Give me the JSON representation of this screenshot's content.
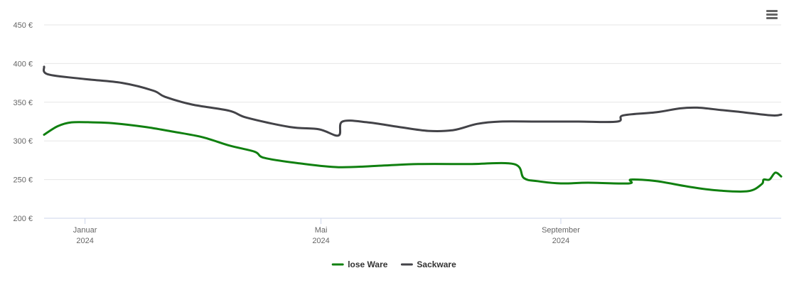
{
  "chart_data": {
    "type": "line",
    "title": "",
    "xlabel": "",
    "ylabel": "",
    "x_domain": [
      "2023-12-11",
      "2024-12-23"
    ],
    "ylim": [
      200,
      450
    ],
    "y_ticks": [
      200,
      250,
      300,
      350,
      400,
      450
    ],
    "y_tick_labels": [
      "200 €",
      "250 €",
      "300 €",
      "350 €",
      "400 €",
      "450 €"
    ],
    "x_ticks": [
      {
        "date": "2024-01-01",
        "month": "Januar",
        "year": "2024"
      },
      {
        "date": "2024-05-01",
        "month": "Mai",
        "year": "2024"
      },
      {
        "date": "2024-09-01",
        "month": "September",
        "year": "2024"
      }
    ],
    "grid": true,
    "legend_position": "bottom-center",
    "series": [
      {
        "name": "lose Ware",
        "color": "#108010",
        "points": [
          [
            "2023-12-11",
            308
          ],
          [
            "2023-12-18",
            319
          ],
          [
            "2023-12-25",
            324
          ],
          [
            "2024-01-05",
            324
          ],
          [
            "2024-01-15",
            323
          ],
          [
            "2024-02-01",
            318
          ],
          [
            "2024-02-15",
            312
          ],
          [
            "2024-03-01",
            305
          ],
          [
            "2024-03-15",
            294
          ],
          [
            "2024-03-28",
            286
          ],
          [
            "2024-04-02",
            278
          ],
          [
            "2024-04-20",
            271
          ],
          [
            "2024-05-10",
            266
          ],
          [
            "2024-06-01",
            268
          ],
          [
            "2024-06-20",
            270
          ],
          [
            "2024-07-15",
            270
          ],
          [
            "2024-08-08",
            270
          ],
          [
            "2024-08-13",
            252
          ],
          [
            "2024-08-20",
            248
          ],
          [
            "2024-09-01",
            245
          ],
          [
            "2024-09-15",
            246
          ],
          [
            "2024-10-06",
            245
          ],
          [
            "2024-10-07",
            250
          ],
          [
            "2024-10-20",
            248
          ],
          [
            "2024-11-05",
            241
          ],
          [
            "2024-11-20",
            236
          ],
          [
            "2024-12-06",
            235
          ],
          [
            "2024-12-13",
            244
          ],
          [
            "2024-12-14",
            250
          ],
          [
            "2024-12-17",
            250
          ],
          [
            "2024-12-20",
            259
          ],
          [
            "2024-12-23",
            254
          ]
        ]
      },
      {
        "name": "Sackware",
        "color": "#434348",
        "points": [
          [
            "2023-12-11",
            396
          ],
          [
            "2023-12-13",
            386
          ],
          [
            "2024-01-01",
            380
          ],
          [
            "2024-01-20",
            375
          ],
          [
            "2024-02-05",
            365
          ],
          [
            "2024-02-11",
            357
          ],
          [
            "2024-02-25",
            347
          ],
          [
            "2024-03-15",
            339
          ],
          [
            "2024-03-24",
            330
          ],
          [
            "2024-04-15",
            318
          ],
          [
            "2024-04-30",
            315
          ],
          [
            "2024-05-10",
            307
          ],
          [
            "2024-05-12",
            325
          ],
          [
            "2024-05-25",
            324
          ],
          [
            "2024-06-10",
            318
          ],
          [
            "2024-06-25",
            313
          ],
          [
            "2024-07-08",
            314
          ],
          [
            "2024-07-20",
            322
          ],
          [
            "2024-08-01",
            325
          ],
          [
            "2024-08-20",
            325
          ],
          [
            "2024-09-10",
            325
          ],
          [
            "2024-09-30",
            325
          ],
          [
            "2024-10-03",
            333
          ],
          [
            "2024-10-20",
            337
          ],
          [
            "2024-11-01",
            342
          ],
          [
            "2024-11-10",
            343
          ],
          [
            "2024-11-22",
            340
          ],
          [
            "2024-11-30",
            338
          ],
          [
            "2024-12-18",
            333
          ],
          [
            "2024-12-23",
            334
          ]
        ]
      }
    ]
  }
}
